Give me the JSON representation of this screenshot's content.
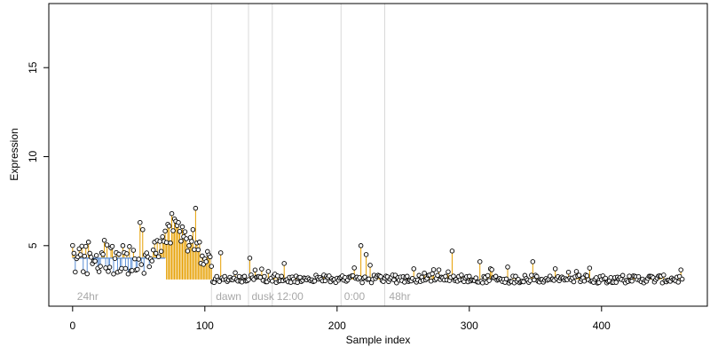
{
  "chart_data": {
    "type": "scatter",
    "title": "",
    "xlabel": "Sample index",
    "ylabel": "Expression",
    "xlim": [
      -18,
      480
    ],
    "ylim": [
      1.6,
      18.6
    ],
    "x_ticks": [
      0,
      100,
      200,
      300,
      400
    ],
    "y_ticks": [
      5,
      10,
      15
    ],
    "grid": false,
    "legend": "none",
    "baseline": 4.3,
    "baseline_end": 70,
    "baseline_low": 3.1,
    "point_count": 462,
    "colors": {
      "points": "#000000",
      "above_baseline": "#e69f00",
      "below_baseline": "#5b8fd6",
      "region_separator": "#d9d9d9",
      "region_label": "#a8a8a8"
    },
    "region_separators": [
      105,
      133,
      151,
      203,
      236
    ],
    "region_labels": [
      {
        "text": "24hr",
        "x": 2
      },
      {
        "text": "dawn",
        "x": 107
      },
      {
        "text": "dusk",
        "x": 134
      },
      {
        "text": "12:00",
        "x": 153
      },
      {
        "text": "0:00",
        "x": 204
      },
      {
        "text": "48hr",
        "x": 238
      }
    ],
    "highlight_points": [
      {
        "x": 12,
        "y": 5.2
      },
      {
        "x": 24,
        "y": 5.3
      },
      {
        "x": 38,
        "y": 5.0
      },
      {
        "x": 51,
        "y": 6.3
      },
      {
        "x": 53,
        "y": 5.9
      },
      {
        "x": 62,
        "y": 5.2
      },
      {
        "x": 68,
        "y": 5.5
      },
      {
        "x": 72,
        "y": 6.2
      },
      {
        "x": 75,
        "y": 6.8
      },
      {
        "x": 77,
        "y": 6.5
      },
      {
        "x": 80,
        "y": 6.3
      },
      {
        "x": 84,
        "y": 5.5
      },
      {
        "x": 88,
        "y": 5.0
      },
      {
        "x": 91,
        "y": 5.9
      },
      {
        "x": 93,
        "y": 7.1
      },
      {
        "x": 96,
        "y": 5.2
      },
      {
        "x": 112,
        "y": 4.6
      },
      {
        "x": 134,
        "y": 4.3
      },
      {
        "x": 160,
        "y": 4.0
      },
      {
        "x": 218,
        "y": 5.0
      },
      {
        "x": 222,
        "y": 4.5
      },
      {
        "x": 225,
        "y": 3.9
      },
      {
        "x": 258,
        "y": 3.7
      },
      {
        "x": 287,
        "y": 4.7
      },
      {
        "x": 308,
        "y": 4.1
      },
      {
        "x": 316,
        "y": 3.7
      },
      {
        "x": 329,
        "y": 3.8
      },
      {
        "x": 348,
        "y": 4.1
      },
      {
        "x": 365,
        "y": 3.7
      }
    ]
  }
}
